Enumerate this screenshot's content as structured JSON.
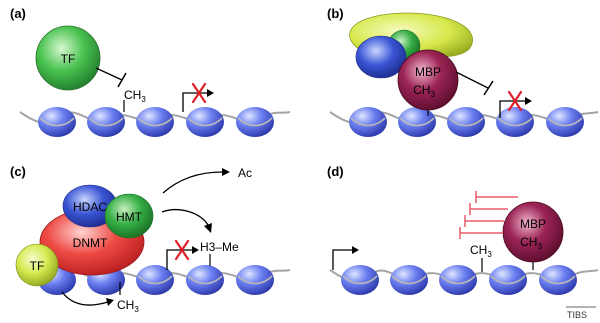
{
  "panels": {
    "a": {
      "label": "(a)",
      "tf": "TF",
      "methyl": "CH",
      "methyl_sub": "3"
    },
    "b": {
      "label": "(b)",
      "mbp": "MBP",
      "methyl": "CH",
      "methyl_sub": "3"
    },
    "c": {
      "label": "(c)",
      "hdac": "HDAC",
      "hmt": "HMT",
      "dnmt": "DNMT",
      "tf": "TF",
      "ac": "Ac",
      "h3me": "H3–Me",
      "methyl": "CH",
      "methyl_sub": "3"
    },
    "d": {
      "label": "(d)",
      "mbp": "MBP",
      "methyl_in_mbp": "CH",
      "methyl_in_mbp_sub": "3",
      "methyl": "CH",
      "methyl_sub": "3"
    }
  },
  "journal_tag": "TIBS",
  "colors": {
    "nucleosome": "#5b6ee0",
    "dna_strand": "#a0a0a0",
    "tf_green": "#3cb34a",
    "mbp_maroon": "#8a1b45",
    "hdac_blue": "#2f49c7",
    "hmt_green": "#2fa84a",
    "dnmt_red": "#e23a3a",
    "tf_yellow": "#d8ec5a",
    "complex_yellow": "#dbe84a",
    "repressor_red": "#e85a6a",
    "cross_red": "#e0202a"
  }
}
